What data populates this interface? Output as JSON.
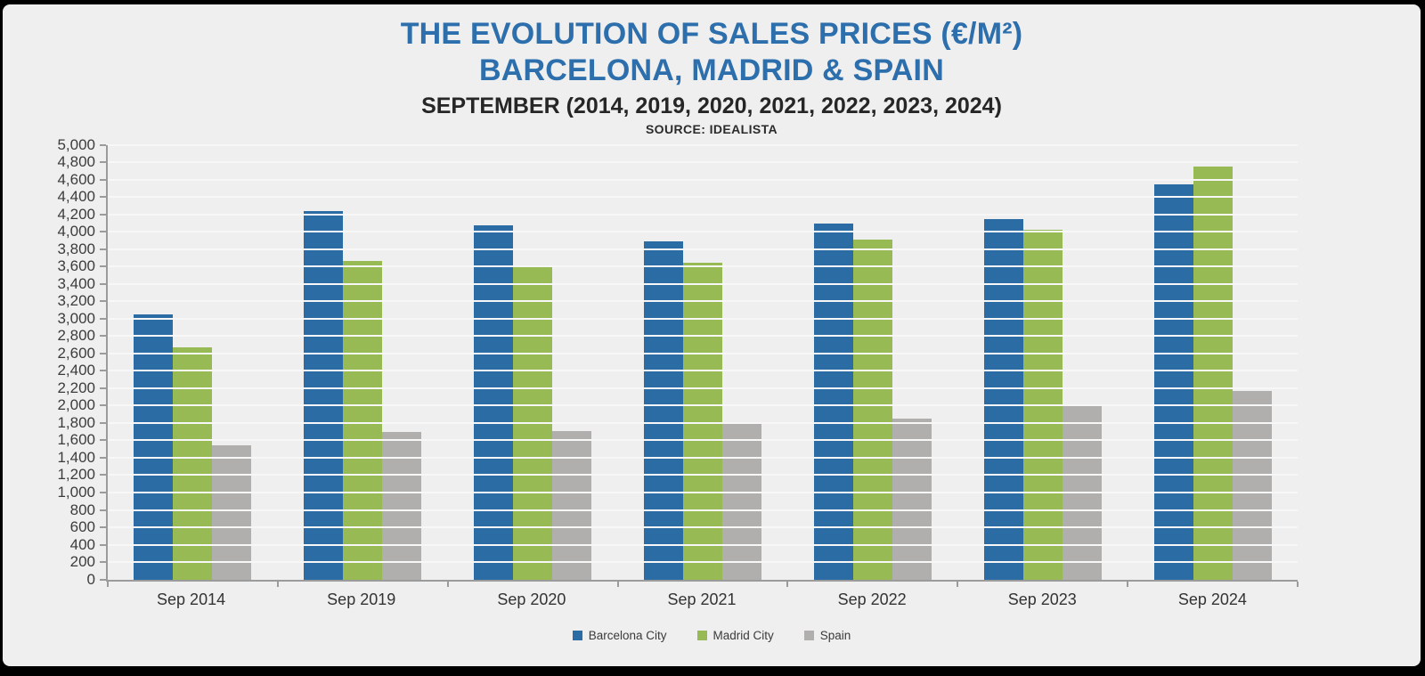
{
  "frame": {
    "background": "#efefef",
    "border": "#000000"
  },
  "header": {
    "title_line1": "THE EVOLUTION OF SALES PRICES (€/M²)",
    "title_line2": "BARCELONA, MADRID & SPAIN",
    "subtitle": "SEPTEMBER (2014, 2019, 2020, 2021, 2022, 2023, 2024)",
    "source": "SOURCE: IDEALISTA",
    "title_color": "#2c6fac"
  },
  "chart_data": {
    "type": "bar",
    "title": "THE EVOLUTION OF SALES PRICES (€/M²) BARCELONA, MADRID & SPAIN",
    "subtitle": "SEPTEMBER (2014, 2019, 2020, 2021, 2022, 2023, 2024)",
    "source": "SOURCE: IDEALISTA",
    "categories": [
      "Sep 2014",
      "Sep 2019",
      "Sep 2020",
      "Sep 2021",
      "Sep 2022",
      "Sep 2023",
      "Sep 2024"
    ],
    "series": [
      {
        "name": "Barcelona City",
        "color": "#2b6ca4",
        "values": [
          3045,
          4235,
          4075,
          3885,
          4090,
          4145,
          4550
        ]
      },
      {
        "name": "Madrid City",
        "color": "#97ba55",
        "values": [
          2670,
          3665,
          3600,
          3645,
          3910,
          4025,
          4750
        ]
      },
      {
        "name": "Spain",
        "color": "#b1aeae",
        "values": [
          1540,
          1700,
          1705,
          1790,
          1855,
          1995,
          2165
        ]
      }
    ],
    "xlabel": "",
    "ylabel": "",
    "ylim": [
      0,
      5000
    ],
    "ytick_step": 200,
    "grid": true,
    "legend_position": "bottom"
  }
}
